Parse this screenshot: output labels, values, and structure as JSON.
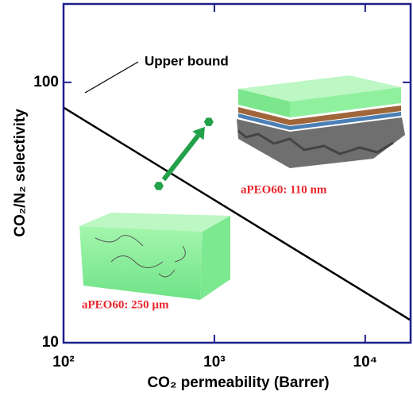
{
  "chart_data": {
    "type": "scatter",
    "x_label": "CO₂ permeability (Barrer)",
    "y_label": "CO₂/N₂ selectivity",
    "xscale": "log",
    "yscale": "log",
    "xlim": [
      100,
      20000
    ],
    "ylim": [
      10,
      200
    ],
    "xticks": [
      {
        "value": 100,
        "label": "10²"
      },
      {
        "value": 1000,
        "label": "10³"
      },
      {
        "value": 10000,
        "label": "10⁴"
      }
    ],
    "yticks": [
      10,
      100
    ],
    "series": [
      {
        "name": "Upper bound",
        "kind": "line",
        "color": "#000000",
        "x": [
          100,
          20000
        ],
        "values": [
          80,
          12.2
        ]
      },
      {
        "name": "aPEO60",
        "kind": "points",
        "color": "#23a04a",
        "x": [
          428,
          918
        ],
        "values": [
          40,
          70.5
        ]
      }
    ],
    "annotations": [
      "aPEO60: 110 nm",
      "aPEO60: 250 µm"
    ]
  }
}
